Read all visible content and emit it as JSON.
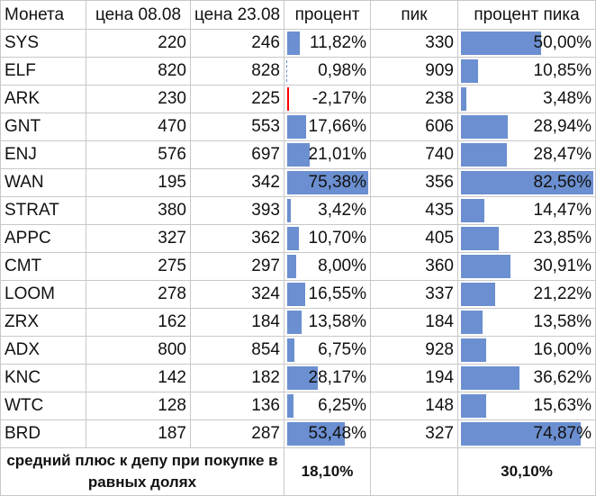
{
  "headers": [
    "Монета",
    "цена 08.08",
    "цена 23.08",
    "процент",
    "пик",
    "процент пика"
  ],
  "rows": [
    {
      "coin": "SYS",
      "p1": "220",
      "p2": "246",
      "pct": "11,82%",
      "pct_v": 11.82,
      "peak": "330",
      "peak_pct": "50,00%",
      "peak_v": 50.0
    },
    {
      "coin": "ELF",
      "p1": "820",
      "p2": "828",
      "pct": "0,98%",
      "pct_v": 0.98,
      "peak": "909",
      "peak_pct": "10,85%",
      "peak_v": 10.85
    },
    {
      "coin": "ARK",
      "p1": "230",
      "p2": "225",
      "pct": "-2,17%",
      "pct_v": -2.17,
      "peak": "238",
      "peak_pct": "3,48%",
      "peak_v": 3.48
    },
    {
      "coin": "GNT",
      "p1": "470",
      "p2": "553",
      "pct": "17,66%",
      "pct_v": 17.66,
      "peak": "606",
      "peak_pct": "28,94%",
      "peak_v": 28.94
    },
    {
      "coin": "ENJ",
      "p1": "576",
      "p2": "697",
      "pct": "21,01%",
      "pct_v": 21.01,
      "peak": "740",
      "peak_pct": "28,47%",
      "peak_v": 28.47
    },
    {
      "coin": "WAN",
      "p1": "195",
      "p2": "342",
      "pct": "75,38%",
      "pct_v": 75.38,
      "peak": "356",
      "peak_pct": "82,56%",
      "peak_v": 82.56
    },
    {
      "coin": "STRAT",
      "p1": "380",
      "p2": "393",
      "pct": "3,42%",
      "pct_v": 3.42,
      "peak": "435",
      "peak_pct": "14,47%",
      "peak_v": 14.47
    },
    {
      "coin": "APPC",
      "p1": "327",
      "p2": "362",
      "pct": "10,70%",
      "pct_v": 10.7,
      "peak": "405",
      "peak_pct": "23,85%",
      "peak_v": 23.85
    },
    {
      "coin": "CMT",
      "p1": "275",
      "p2": "297",
      "pct": "8,00%",
      "pct_v": 8.0,
      "peak": "360",
      "peak_pct": "30,91%",
      "peak_v": 30.91
    },
    {
      "coin": "LOOM",
      "p1": "278",
      "p2": "324",
      "pct": "16,55%",
      "pct_v": 16.55,
      "peak": "337",
      "peak_pct": "21,22%",
      "peak_v": 21.22
    },
    {
      "coin": "ZRX",
      "p1": "162",
      "p2": "184",
      "pct": "13,58%",
      "pct_v": 13.58,
      "peak": "184",
      "peak_pct": "13,58%",
      "peak_v": 13.58
    },
    {
      "coin": "ADX",
      "p1": "800",
      "p2": "854",
      "pct": "6,75%",
      "pct_v": 6.75,
      "peak": "928",
      "peak_pct": "16,00%",
      "peak_v": 16.0
    },
    {
      "coin": "KNC",
      "p1": "142",
      "p2": "182",
      "pct": "28,17%",
      "pct_v": 28.17,
      "peak": "194",
      "peak_pct": "36,62%",
      "peak_v": 36.62
    },
    {
      "coin": "WTC",
      "p1": "128",
      "p2": "136",
      "pct": "6,25%",
      "pct_v": 6.25,
      "peak": "148",
      "peak_pct": "15,63%",
      "peak_v": 15.63
    },
    {
      "coin": "BRD",
      "p1": "187",
      "p2": "287",
      "pct": "53,48%",
      "pct_v": 53.48,
      "peak": "327",
      "peak_pct": "74,87%",
      "peak_v": 74.87
    }
  ],
  "summary": {
    "label": "средний плюс к депу при покупке в равных долях",
    "avg_pct": "18,10%",
    "avg_peak_pct": "30,10%"
  },
  "colors": {
    "bar": "#6b8fd0",
    "negative": "#ff0000",
    "grid": "#c8c8c8"
  }
}
